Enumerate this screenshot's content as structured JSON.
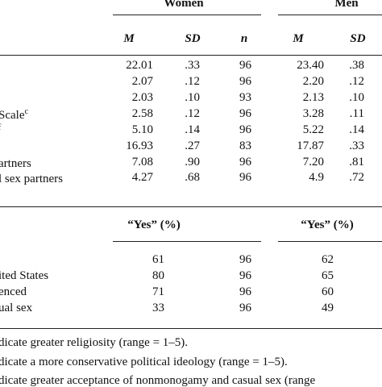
{
  "table": {
    "group_headers": {
      "women": "Women",
      "men": "Men"
    },
    "col_headers": {
      "m": "M",
      "sd": "SD",
      "n": "n"
    },
    "rows": [
      {
        "label": "",
        "label_sup": "",
        "w": [
          "22.01",
          ".33",
          "96"
        ],
        "m": [
          "23.40",
          ".38"
        ]
      },
      {
        "label": "",
        "label_sup": "",
        "w": [
          "2.07",
          ".12",
          "96"
        ],
        "m": [
          "2.20",
          ".12"
        ]
      },
      {
        "label": "",
        "label_sup": "",
        "w": [
          "2.03",
          ".10",
          "93"
        ],
        "m": [
          "2.13",
          ".10"
        ]
      },
      {
        "label": "Scale",
        "label_sup": "c",
        "w": [
          "2.58",
          ".12",
          "96"
        ],
        "m": [
          "3.28",
          ".11"
        ]
      },
      {
        "label": "",
        "label_sup": "f",
        "w": [
          "5.10",
          ".14",
          "96"
        ],
        "m": [
          "5.22",
          ".14"
        ]
      },
      {
        "label": "",
        "label_sup": "",
        "w": [
          "16.93",
          ".27",
          "83"
        ],
        "m": [
          "17.87",
          ".33"
        ]
      },
      {
        "label": "artners",
        "label_sup": "",
        "w": [
          "7.08",
          ".90",
          "96"
        ],
        "m": [
          "7.20",
          ".81"
        ]
      },
      {
        "label": "l sex partners",
        "label_sup": "",
        "w": [
          "4.27",
          ".68",
          "96"
        ],
        "m": [
          "4.9",
          ".72"
        ]
      }
    ],
    "yes_header": "“Yes” (%)",
    "yes_rows": [
      {
        "label": "",
        "w": [
          "61",
          "96"
        ],
        "m": [
          "62"
        ]
      },
      {
        "label": "ited States",
        "w": [
          "80",
          "96"
        ],
        "m": [
          "65"
        ]
      },
      {
        "label": "enced",
        "w": [
          "71",
          "96"
        ],
        "m": [
          "60"
        ]
      },
      {
        "label": "ual sex",
        "w": [
          "33",
          "96"
        ],
        "m": [
          "49"
        ]
      }
    ]
  },
  "footnotes": [
    "dicate greater religiosity (range = 1–5).",
    "dicate a more conservative political ideology (range = 1–5).",
    "dicate greater acceptance of nonmonogamy and casual sex (range"
  ]
}
